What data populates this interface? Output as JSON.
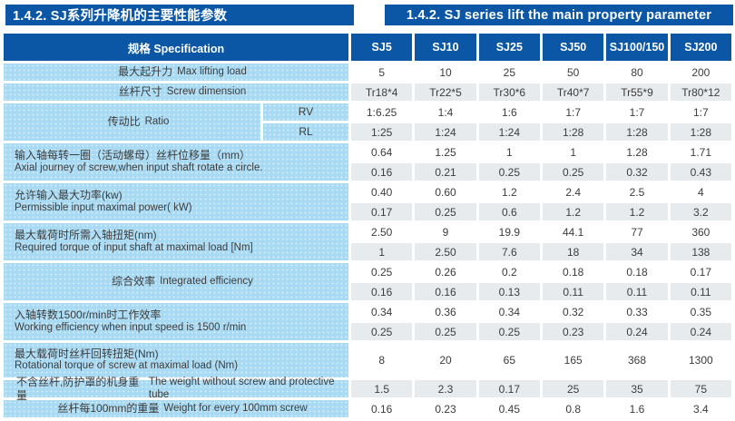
{
  "titles": {
    "left": "1.4.2. SJ系列升降机的主要性能参数",
    "right": "1.4.2. SJ series lift the main property parameter"
  },
  "colors": {
    "dark_blue": "#0b57a5",
    "light_blue": "#a9daf3",
    "row_gray": "#e8ebee",
    "text": "#3c3c3c"
  },
  "table": {
    "spec_header": "规格  Specification",
    "columns": [
      "SJ5",
      "SJ10",
      "SJ25",
      "SJ50",
      "SJ100/150",
      "SJ200"
    ],
    "groups": [
      {
        "label_zh": "最大起升力",
        "label_en": "Max lifting load",
        "inline": true,
        "rows": [
          [
            "5",
            "10",
            "25",
            "50",
            "80",
            "200"
          ]
        ]
      },
      {
        "label_zh": "丝杆尺寸",
        "label_en": "Screw dimension",
        "inline": true,
        "rows": [
          [
            "Tr18*4",
            "Tr22*5",
            "Tr30*6",
            "Tr40*7",
            "Tr55*9",
            "Tr80*12"
          ]
        ]
      },
      {
        "label_zh": "传动比",
        "label_en": "Ratio",
        "inline": true,
        "sub_labels": [
          "RV",
          "RL"
        ],
        "rows": [
          [
            "1:6.25",
            "1:4",
            "1:6",
            "1:7",
            "1:7",
            "1:7"
          ],
          [
            "1:25",
            "1:24",
            "1:24",
            "1:28",
            "1:28",
            "1:28"
          ]
        ]
      },
      {
        "label_zh": "输入轴每转一圈（活动螺母）丝杆位移量（mm）",
        "label_en": "Axial journey of screw,when input shaft rotate a circle.",
        "rows": [
          [
            "0.64",
            "1.25",
            "1",
            "1",
            "1.28",
            "1.71"
          ],
          [
            "0.16",
            "0.21",
            "0.25",
            "0.25",
            "0.32",
            "0.43"
          ]
        ]
      },
      {
        "label_zh": "允许输入最大功率(kw)",
        "label_en": "Permissible input maximal power( kW)",
        "rows": [
          [
            "0.40",
            "0.60",
            "1.2",
            "2.4",
            "2.5",
            "4"
          ],
          [
            "0.17",
            "0.25",
            "0.6",
            "1.2",
            "1.2",
            "3.2"
          ]
        ]
      },
      {
        "label_zh": "最大载荷时所需入轴扭矩(nm)",
        "label_en": "Required torque of input shaft at maximal load [Nm]",
        "rows": [
          [
            "2.50",
            "9",
            "19.9",
            "44.1",
            "77",
            "360"
          ],
          [
            "1",
            "2.50",
            "7.6",
            "18",
            "34",
            "138"
          ]
        ]
      },
      {
        "label_zh": "综合效率",
        "label_en": "Integrated efficiency",
        "inline": true,
        "rows": [
          [
            "0.25",
            "0.26",
            "0.2",
            "0.18",
            "0.18",
            "0.17"
          ],
          [
            "0.16",
            "0.16",
            "0.13",
            "0.11",
            "0.11",
            "0.11"
          ]
        ]
      },
      {
        "label_zh": "入轴转数1500r/min时工作效率",
        "label_en": "Working  efficiency  when input speed is 1500 r/min",
        "rows": [
          [
            "0.34",
            "0.36",
            "0.34",
            "0.32",
            "0.33",
            "0.35"
          ],
          [
            "0.25",
            "0.25",
            "0.25",
            "0.23",
            "0.24",
            "0.24"
          ]
        ]
      },
      {
        "label_zh": "最大载荷时丝杆回转扭矩(Nm)",
        "label_en": "Rotational torque of screw at maximal load  (Nm)",
        "tall": true,
        "rows": [
          [
            "8",
            "20",
            "65",
            "165",
            "368",
            "1300"
          ]
        ]
      },
      {
        "label_zh": "不含丝杆,防护罩的机身重量",
        "label_en": "The weight without screw and protective tube",
        "inline": true,
        "rows": [
          [
            "1.5",
            "2.3",
            "0.17",
            "25",
            "35",
            "75"
          ]
        ]
      },
      {
        "label_zh": "丝杆每100mm的重量",
        "label_en": "Weight for every 100mm screw",
        "inline": true,
        "rows": [
          [
            "0.16",
            "0.23",
            "0.45",
            "0.8",
            "1.6",
            "3.4"
          ]
        ]
      }
    ]
  }
}
